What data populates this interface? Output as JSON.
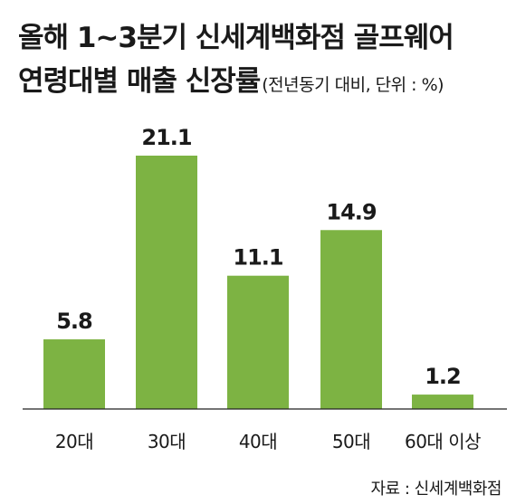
{
  "chart_data": {
    "type": "bar",
    "title": "올해 1~3분기 신세계백화점 골프웨어",
    "subtitle": "연령대별 매출 신장률",
    "subtitle_note": "(전년동기 대비, 단위 : %)",
    "categories": [
      "20대",
      "30대",
      "40대",
      "50대",
      "60대 이상"
    ],
    "values": [
      5.8,
      21.1,
      11.1,
      14.9,
      1.2
    ],
    "bar_color": "#7db343",
    "grid": false,
    "legend": "none",
    "source": "자료 : 신세계백화점"
  }
}
